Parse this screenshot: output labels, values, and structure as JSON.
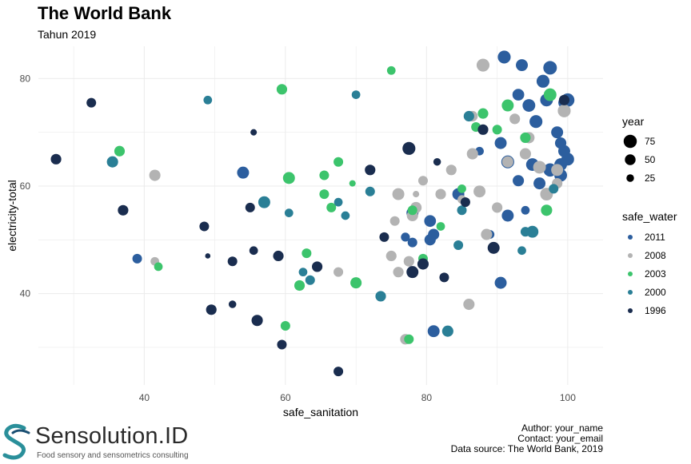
{
  "header": {
    "title": "The World Bank",
    "subtitle": "Tahun 2019"
  },
  "caption": {
    "author": "Author: your_name",
    "contact": "Contact: your_email",
    "source": "Data source: The World Bank, 2019"
  },
  "logo": {
    "name": "Sensolution.ID",
    "tagline": "Food sensory and sensometrics consulting"
  },
  "colors": {
    "2011": "#2c5e9e",
    "2008": "#b3b3b3",
    "2003": "#3cc46c",
    "2000": "#2a7f96",
    "1996": "#1a2d4f",
    "grid": "#ebebeb"
  },
  "chart_data": {
    "type": "scatter",
    "xlabel": "safe_sanitation",
    "ylabel": "electricity-total",
    "xlim": [
      25,
      105
    ],
    "ylim": [
      23,
      86
    ],
    "xticks": [
      40,
      60,
      80,
      100
    ],
    "yticks": [
      40,
      60,
      80
    ],
    "grid": true,
    "legend_position": "right",
    "size_legend": {
      "title": "year",
      "values": [
        75,
        50,
        25
      ]
    },
    "color_legend": {
      "title": "safe_water",
      "values": [
        "2011",
        "2008",
        "2003",
        "2000",
        "1996"
      ]
    },
    "series": [
      {
        "name": "2011",
        "points": [
          [
            91,
            84,
            72
          ],
          [
            93.5,
            82.5,
            62
          ],
          [
            97.5,
            82,
            80
          ],
          [
            96.5,
            79.5,
            72
          ],
          [
            100,
            76,
            78
          ],
          [
            99.5,
            75.5,
            60
          ],
          [
            94.5,
            75,
            70
          ],
          [
            93,
            77,
            60
          ],
          [
            95.5,
            72,
            72
          ],
          [
            98.5,
            70,
            62
          ],
          [
            90.5,
            68,
            62
          ],
          [
            87.5,
            66.5,
            32
          ],
          [
            91.5,
            64.5,
            72
          ],
          [
            95,
            64,
            70
          ],
          [
            97.5,
            63,
            76
          ],
          [
            99,
            62,
            70
          ],
          [
            99.5,
            66.5,
            62
          ],
          [
            99,
            68,
            56
          ],
          [
            96,
            60.5,
            62
          ],
          [
            93,
            61,
            55
          ],
          [
            84.5,
            58.5,
            62
          ],
          [
            91.5,
            54.5,
            62
          ],
          [
            94,
            55.5,
            32
          ],
          [
            89,
            51,
            32
          ],
          [
            78,
            55,
            62
          ],
          [
            80.5,
            53.5,
            60
          ],
          [
            81,
            51,
            55
          ],
          [
            80.5,
            50,
            55
          ],
          [
            78,
            49.5,
            40
          ],
          [
            77,
            50.5,
            35
          ],
          [
            81,
            33,
            62
          ],
          [
            90.5,
            42,
            62
          ],
          [
            54,
            62.5,
            62
          ],
          [
            39,
            46.5,
            40
          ],
          [
            97,
            76,
            70
          ],
          [
            100,
            65,
            70
          ],
          [
            99,
            64,
            70
          ]
        ]
      },
      {
        "name": "2008",
        "points": [
          [
            88,
            82.5,
            72
          ],
          [
            86.5,
            73,
            48
          ],
          [
            92.5,
            72.5,
            48
          ],
          [
            99.5,
            74,
            72
          ],
          [
            94.5,
            69,
            55
          ],
          [
            86.5,
            66,
            55
          ],
          [
            83.5,
            63,
            48
          ],
          [
            91.5,
            64.5,
            55
          ],
          [
            94,
            66,
            55
          ],
          [
            96,
            63.5,
            70
          ],
          [
            98.5,
            63,
            62
          ],
          [
            98.5,
            60.5,
            48
          ],
          [
            97,
            58.5,
            70
          ],
          [
            87.5,
            59,
            62
          ],
          [
            90,
            56,
            48
          ],
          [
            85,
            57.5,
            32
          ],
          [
            79.5,
            61,
            40
          ],
          [
            76,
            58.5,
            62
          ],
          [
            78.5,
            58.5,
            18
          ],
          [
            78.5,
            56,
            55
          ],
          [
            75.5,
            53.5,
            40
          ],
          [
            82,
            58.5,
            48
          ],
          [
            78,
            54.5,
            55
          ],
          [
            75,
            47,
            48
          ],
          [
            77.5,
            46,
            48
          ],
          [
            76,
            44,
            48
          ],
          [
            77,
            31.5,
            48
          ],
          [
            86,
            38,
            55
          ],
          [
            88.5,
            51,
            55
          ],
          [
            67.5,
            44,
            40
          ],
          [
            41.5,
            62,
            55
          ],
          [
            41.5,
            46,
            32
          ]
        ]
      },
      {
        "name": "2003",
        "points": [
          [
            75,
            81.5,
            32
          ],
          [
            59.5,
            78,
            48
          ],
          [
            97.5,
            77,
            70
          ],
          [
            91.5,
            75,
            62
          ],
          [
            88,
            73.5,
            48
          ],
          [
            87,
            71,
            40
          ],
          [
            94,
            69,
            48
          ],
          [
            90,
            70.5,
            40
          ],
          [
            36.5,
            66.5,
            48
          ],
          [
            67.5,
            64.5,
            40
          ],
          [
            65.5,
            62,
            40
          ],
          [
            60.5,
            61.5,
            62
          ],
          [
            69.5,
            60.5,
            18
          ],
          [
            65.5,
            58.5,
            40
          ],
          [
            66.5,
            56,
            40
          ],
          [
            97,
            55.5,
            55
          ],
          [
            78,
            55.5,
            40
          ],
          [
            85,
            59.5,
            32
          ],
          [
            82,
            52.5,
            32
          ],
          [
            79.5,
            46.5,
            40
          ],
          [
            63,
            47.5,
            40
          ],
          [
            62,
            41.5,
            48
          ],
          [
            70,
            42,
            55
          ],
          [
            60,
            34,
            40
          ],
          [
            77.5,
            31.5,
            40
          ],
          [
            42,
            45,
            32
          ]
        ]
      },
      {
        "name": "2000",
        "points": [
          [
            49,
            76,
            32
          ],
          [
            70,
            77,
            32
          ],
          [
            86,
            73,
            48
          ],
          [
            35.5,
            64.5,
            55
          ],
          [
            57,
            57,
            62
          ],
          [
            60.5,
            55,
            32
          ],
          [
            67.5,
            57,
            32
          ],
          [
            68.5,
            54.5,
            32
          ],
          [
            72,
            59,
            40
          ],
          [
            85,
            55.5,
            40
          ],
          [
            95,
            51.5,
            62
          ],
          [
            84.5,
            49,
            40
          ],
          [
            93.5,
            48,
            32
          ],
          [
            63.5,
            42.5,
            40
          ],
          [
            62.5,
            44,
            32
          ],
          [
            73.5,
            39.5,
            48
          ],
          [
            83,
            33,
            55
          ],
          [
            94,
            51.5,
            40
          ],
          [
            98,
            59.5,
            40
          ]
        ]
      },
      {
        "name": "1996",
        "points": [
          [
            32.5,
            75.5,
            40
          ],
          [
            27.5,
            65,
            48
          ],
          [
            37,
            55.5,
            48
          ],
          [
            77.5,
            67,
            72
          ],
          [
            72,
            63,
            48
          ],
          [
            55.5,
            70,
            18
          ],
          [
            55,
            56,
            40
          ],
          [
            48.5,
            52.5,
            40
          ],
          [
            49,
            47,
            12
          ],
          [
            52.5,
            46,
            40
          ],
          [
            55.5,
            48,
            32
          ],
          [
            59,
            47,
            48
          ],
          [
            64.5,
            45,
            48
          ],
          [
            49.5,
            37,
            48
          ],
          [
            52.5,
            38,
            25
          ],
          [
            56,
            35,
            55
          ],
          [
            59.5,
            30.5,
            40
          ],
          [
            67.5,
            25.5,
            40
          ],
          [
            74,
            50.5,
            40
          ],
          [
            78,
            44,
            62
          ],
          [
            79.5,
            45.5,
            55
          ],
          [
            82.5,
            43,
            40
          ],
          [
            88,
            70.5,
            48
          ],
          [
            85.5,
            57,
            40
          ],
          [
            89.5,
            48.5,
            62
          ],
          [
            81.5,
            64.5,
            25
          ],
          [
            99.5,
            76,
            48
          ]
        ]
      }
    ]
  }
}
